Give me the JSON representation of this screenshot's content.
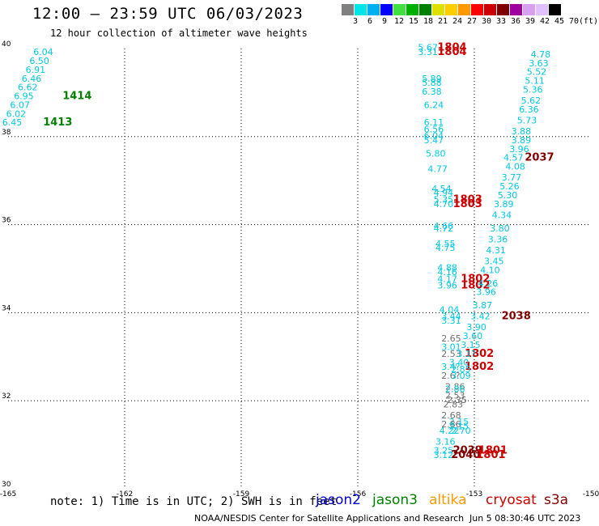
{
  "title": "12:00 – 23:59 UTC 06/03/2023",
  "subtitle": "12 hour collection of altimeter wave heights",
  "colorbar": {
    "colors": [
      "#808080",
      "#00e5e5",
      "#00b0f0",
      "#0000ff",
      "#40e040",
      "#00b000",
      "#008000",
      "#e0e000",
      "#ffcc00",
      "#ff9900",
      "#ff0000",
      "#cc0000",
      "#800000",
      "#a000a0",
      "#d8a0f0",
      "#e0c0ff",
      "#000000"
    ],
    "labels": [
      "3",
      "6",
      "9",
      "12",
      "15",
      "18",
      "21",
      "24",
      "27",
      "30",
      "33",
      "36",
      "39",
      "42",
      "45",
      "70",
      "(ft)"
    ]
  },
  "axes": {
    "lon_ticks": [
      "-165",
      "-162",
      "-159",
      "-156",
      "-153",
      "-150"
    ],
    "lat_ticks": [
      "30",
      "32",
      "34",
      "36",
      "38",
      "40"
    ],
    "lon_range": [
      -165,
      -150
    ],
    "lat_range": [
      30,
      40
    ]
  },
  "colors": {
    "jason2": "#0000cc",
    "jason3": "#008000",
    "altika": "#ff9900",
    "cryosat": "#cc0000",
    "s3a": "#800000",
    "cyan": "#00c8e0",
    "gray": "#707070"
  },
  "points": [
    {
      "t": "6.04",
      "lon": -164.35,
      "lat": 39.85,
      "c": "cyan"
    },
    {
      "t": "6.50",
      "lon": -164.45,
      "lat": 39.65,
      "c": "cyan"
    },
    {
      "t": "6.91",
      "lon": -164.55,
      "lat": 39.45,
      "c": "cyan"
    },
    {
      "t": "6.46",
      "lon": -164.65,
      "lat": 39.25,
      "c": "cyan"
    },
    {
      "t": "6.62",
      "lon": -164.75,
      "lat": 39.05,
      "c": "cyan"
    },
    {
      "t": "6.95",
      "lon": -164.85,
      "lat": 38.85,
      "c": "cyan"
    },
    {
      "t": "6.07",
      "lon": -164.95,
      "lat": 38.65,
      "c": "cyan"
    },
    {
      "t": "6.02",
      "lon": -165.05,
      "lat": 38.45,
      "c": "cyan"
    },
    {
      "t": "6.45",
      "lon": -165.15,
      "lat": 38.25,
      "c": "cyan"
    },
    {
      "t": "1414",
      "lon": -163.6,
      "lat": 38.85,
      "c": "jason3",
      "b": true
    },
    {
      "t": "1413",
      "lon": -164.1,
      "lat": 38.25,
      "c": "jason3",
      "b": true
    },
    {
      "t": "5.67",
      "lon": -154.45,
      "lat": 39.95,
      "c": "cyan"
    },
    {
      "t": "3.31",
      "lon": -154.45,
      "lat": 39.85,
      "c": "cyan"
    },
    {
      "t": "1804",
      "lon": -153.95,
      "lat": 39.95,
      "c": "cryosat",
      "b": true
    },
    {
      "t": "1804",
      "lon": -153.95,
      "lat": 39.85,
      "c": "cryosat",
      "b": true
    },
    {
      "t": "5.89",
      "lon": -154.35,
      "lat": 39.25,
      "c": "cyan"
    },
    {
      "t": "5.88",
      "lon": -154.35,
      "lat": 39.15,
      "c": "cyan"
    },
    {
      "t": "6.38",
      "lon": -154.35,
      "lat": 38.95,
      "c": "cyan"
    },
    {
      "t": "6.24",
      "lon": -154.3,
      "lat": 38.65,
      "c": "cyan"
    },
    {
      "t": "6.11",
      "lon": -154.3,
      "lat": 38.25,
      "c": "cyan"
    },
    {
      "t": "6.56",
      "lon": -154.3,
      "lat": 38.1,
      "c": "cyan"
    },
    {
      "t": "6.04",
      "lon": -154.3,
      "lat": 37.95,
      "c": "cyan"
    },
    {
      "t": "5.47",
      "lon": -154.3,
      "lat": 37.85,
      "c": "cyan"
    },
    {
      "t": "5.80",
      "lon": -154.25,
      "lat": 37.55,
      "c": "cyan"
    },
    {
      "t": "4.77",
      "lon": -154.2,
      "lat": 37.2,
      "c": "cyan"
    },
    {
      "t": "4.54",
      "lon": -154.1,
      "lat": 36.75,
      "c": "cyan"
    },
    {
      "t": "4.94",
      "lon": -154.05,
      "lat": 36.65,
      "c": "cyan"
    },
    {
      "t": "5.35",
      "lon": -154.05,
      "lat": 36.5,
      "c": "cyan"
    },
    {
      "t": "4.70",
      "lon": -154.05,
      "lat": 36.4,
      "c": "cyan"
    },
    {
      "t": "1803",
      "lon": -153.55,
      "lat": 36.5,
      "c": "cryosat",
      "b": true
    },
    {
      "t": "1803",
      "lon": -153.55,
      "lat": 36.4,
      "c": "cryosat",
      "b": true
    },
    {
      "t": "4.66",
      "lon": -154.05,
      "lat": 35.9,
      "c": "cyan"
    },
    {
      "t": "4.72",
      "lon": -154.05,
      "lat": 35.85,
      "c": "cyan"
    },
    {
      "t": "4.55",
      "lon": -154.0,
      "lat": 35.5,
      "c": "cyan"
    },
    {
      "t": "4.75",
      "lon": -154.0,
      "lat": 35.4,
      "c": "cyan"
    },
    {
      "t": "4.88",
      "lon": -153.95,
      "lat": 34.95,
      "c": "cyan"
    },
    {
      "t": "4.16",
      "lon": -153.95,
      "lat": 34.85,
      "c": "cyan"
    },
    {
      "t": "4.17",
      "lon": -153.95,
      "lat": 34.7,
      "c": "cyan"
    },
    {
      "t": "3.96",
      "lon": -153.95,
      "lat": 34.55,
      "c": "cyan"
    },
    {
      "t": "1802",
      "lon": -153.35,
      "lat": 34.7,
      "c": "cryosat",
      "b": true
    },
    {
      "t": "1802",
      "lon": -153.35,
      "lat": 34.55,
      "c": "cryosat",
      "b": true
    },
    {
      "t": "4.04",
      "lon": -153.9,
      "lat": 34.0,
      "c": "cyan"
    },
    {
      "t": "3.44",
      "lon": -153.85,
      "lat": 33.85,
      "c": "cyan"
    },
    {
      "t": "3.31",
      "lon": -153.85,
      "lat": 33.75,
      "c": "cyan"
    },
    {
      "t": "2.65",
      "lon": -153.85,
      "lat": 33.35,
      "c": "gray"
    },
    {
      "t": "3.01",
      "lon": -153.85,
      "lat": 33.15,
      "c": "cyan"
    },
    {
      "t": "2.53",
      "lon": -153.85,
      "lat": 33.0,
      "c": "gray"
    },
    {
      "t": "1802",
      "lon": -153.25,
      "lat": 33.0,
      "c": "cryosat",
      "b": true
    },
    {
      "t": "1802",
      "lon": -153.25,
      "lat": 32.7,
      "c": "cryosat",
      "b": true
    },
    {
      "t": "3.40",
      "lon": -153.65,
      "lat": 32.8,
      "c": "cyan"
    },
    {
      "t": "3.4?",
      "lon": -153.85,
      "lat": 32.7,
      "c": "cyan"
    },
    {
      "t": "2.85",
      "lon": -153.6,
      "lat": 32.65,
      "c": "cyan"
    },
    {
      "t": "2.6?",
      "lon": -153.85,
      "lat": 32.5,
      "c": "gray"
    },
    {
      "t": "3.09",
      "lon": -153.6,
      "lat": 32.5,
      "c": "cyan"
    },
    {
      "t": "2.86",
      "lon": -153.75,
      "lat": 32.25,
      "c": "gray"
    },
    {
      "t": "2.86",
      "lon": -153.75,
      "lat": 32.2,
      "c": "cyan"
    },
    {
      "t": "2.53",
      "lon": -153.75,
      "lat": 32.05,
      "c": "gray"
    },
    {
      "t": "2.35",
      "lon": -153.7,
      "lat": 31.95,
      "c": "gray"
    },
    {
      "t": "2.83",
      "lon": -153.8,
      "lat": 31.85,
      "c": "gray"
    },
    {
      "t": "2.68",
      "lon": -153.85,
      "lat": 31.6,
      "c": "gray"
    },
    {
      "t": "2.15",
      "lon": -153.65,
      "lat": 31.45,
      "c": "cyan"
    },
    {
      "t": "2.86",
      "lon": -153.85,
      "lat": 31.4,
      "c": "gray"
    },
    {
      "t": "2.15",
      "lon": -153.65,
      "lat": 31.35,
      "c": "cyan"
    },
    {
      "t": "4.22",
      "lon": -153.9,
      "lat": 31.25,
      "c": "cyan"
    },
    {
      "t": "2.70",
      "lon": -153.6,
      "lat": 31.25,
      "c": "cyan"
    },
    {
      "t": "3.16",
      "lon": -154.0,
      "lat": 31.0,
      "c": "cyan"
    },
    {
      "t": "3.25",
      "lon": -154.05,
      "lat": 30.8,
      "c": "cyan"
    },
    {
      "t": "3.12",
      "lon": -154.05,
      "lat": 30.7,
      "c": "cyan"
    },
    {
      "t": "2039",
      "lon": -153.55,
      "lat": 30.8,
      "c": "s3a",
      "b": true
    },
    {
      "t": "2040",
      "lon": -153.6,
      "lat": 30.7,
      "c": "s3a",
      "b": true
    },
    {
      "t": "1801",
      "lon": -152.9,
      "lat": 30.8,
      "c": "cryosat",
      "b": true
    },
    {
      "t": "1801",
      "lon": -152.95,
      "lat": 30.7,
      "c": "cryosat",
      "b": true
    },
    {
      "t": "4.78",
      "lon": -151.55,
      "lat": 39.8,
      "c": "cyan"
    },
    {
      "t": "3.63",
      "lon": -151.6,
      "lat": 39.6,
      "c": "cyan"
    },
    {
      "t": "5.52",
      "lon": -151.65,
      "lat": 39.4,
      "c": "cyan"
    },
    {
      "t": "5.11",
      "lon": -151.7,
      "lat": 39.2,
      "c": "cyan"
    },
    {
      "t": "5.36",
      "lon": -151.75,
      "lat": 39.0,
      "c": "cyan"
    },
    {
      "t": "5.62",
      "lon": -151.8,
      "lat": 38.75,
      "c": "cyan"
    },
    {
      "t": "6.36",
      "lon": -151.85,
      "lat": 38.55,
      "c": "cyan"
    },
    {
      "t": "5.73",
      "lon": -151.9,
      "lat": 38.3,
      "c": "cyan"
    },
    {
      "t": "3.88",
      "lon": -152.05,
      "lat": 38.05,
      "c": "cyan"
    },
    {
      "t": "3.89",
      "lon": -152.05,
      "lat": 37.85,
      "c": "cyan"
    },
    {
      "t": "3.96",
      "lon": -152.1,
      "lat": 37.65,
      "c": "cyan"
    },
    {
      "t": "4.57",
      "lon": -152.25,
      "lat": 37.45,
      "c": "cyan"
    },
    {
      "t": "2037",
      "lon": -151.7,
      "lat": 37.45,
      "c": "s3a",
      "b": true
    },
    {
      "t": "4.08",
      "lon": -152.2,
      "lat": 37.25,
      "c": "cyan"
    },
    {
      "t": "3.77",
      "lon": -152.3,
      "lat": 37.0,
      "c": "cyan"
    },
    {
      "t": "5.26",
      "lon": -152.35,
      "lat": 36.8,
      "c": "cyan"
    },
    {
      "t": "5.30",
      "lon": -152.4,
      "lat": 36.6,
      "c": "cyan"
    },
    {
      "t": "3.89",
      "lon": -152.5,
      "lat": 36.4,
      "c": "cyan"
    },
    {
      "t": "4.34",
      "lon": -152.55,
      "lat": 36.15,
      "c": "cyan"
    },
    {
      "t": "3.80",
      "lon": -152.6,
      "lat": 35.85,
      "c": "cyan"
    },
    {
      "t": "3.36",
      "lon": -152.65,
      "lat": 35.6,
      "c": "cyan"
    },
    {
      "t": "4.31",
      "lon": -152.7,
      "lat": 35.35,
      "c": "cyan"
    },
    {
      "t": "3.45",
      "lon": -152.75,
      "lat": 35.1,
      "c": "cyan"
    },
    {
      "t": "4.10",
      "lon": -152.85,
      "lat": 34.9,
      "c": "cyan"
    },
    {
      "t": "4.26",
      "lon": -152.9,
      "lat": 34.6,
      "c": "cyan"
    },
    {
      "t": "3.96",
      "lon": -152.95,
      "lat": 34.4,
      "c": "cyan"
    },
    {
      "t": "3.87",
      "lon": -153.05,
      "lat": 34.1,
      "c": "cyan"
    },
    {
      "t": "3.42",
      "lon": -153.1,
      "lat": 33.85,
      "c": "cyan"
    },
    {
      "t": "2038",
      "lon": -152.3,
      "lat": 33.85,
      "c": "s3a",
      "b": true
    },
    {
      "t": "3.90",
      "lon": -153.2,
      "lat": 33.6,
      "c": "cyan"
    },
    {
      "t": "3.60",
      "lon": -153.3,
      "lat": 33.4,
      "c": "cyan"
    },
    {
      "t": "3.15",
      "lon": -153.35,
      "lat": 33.2,
      "c": "cyan"
    },
    {
      "t": "3.1?",
      "lon": -153.45,
      "lat": 33.0,
      "c": "cyan"
    }
  ],
  "footnote": "note: 1) Time is in UTC; 2) SWH is in feet",
  "legend": [
    {
      "label": "jason2",
      "color": "#0000cc"
    },
    {
      "label": "jason3",
      "color": "#008000"
    },
    {
      "label": "altika",
      "color": "#ff9900"
    },
    {
      "label": "cryosat",
      "color": "#cc0000"
    },
    {
      "label": "s3a",
      "color": "#800000"
    }
  ],
  "credit": "NOAA/NESDIS Center for Satellite Applications and Research",
  "timestamp": "Jun  5 08:30:46 UTC 2023"
}
